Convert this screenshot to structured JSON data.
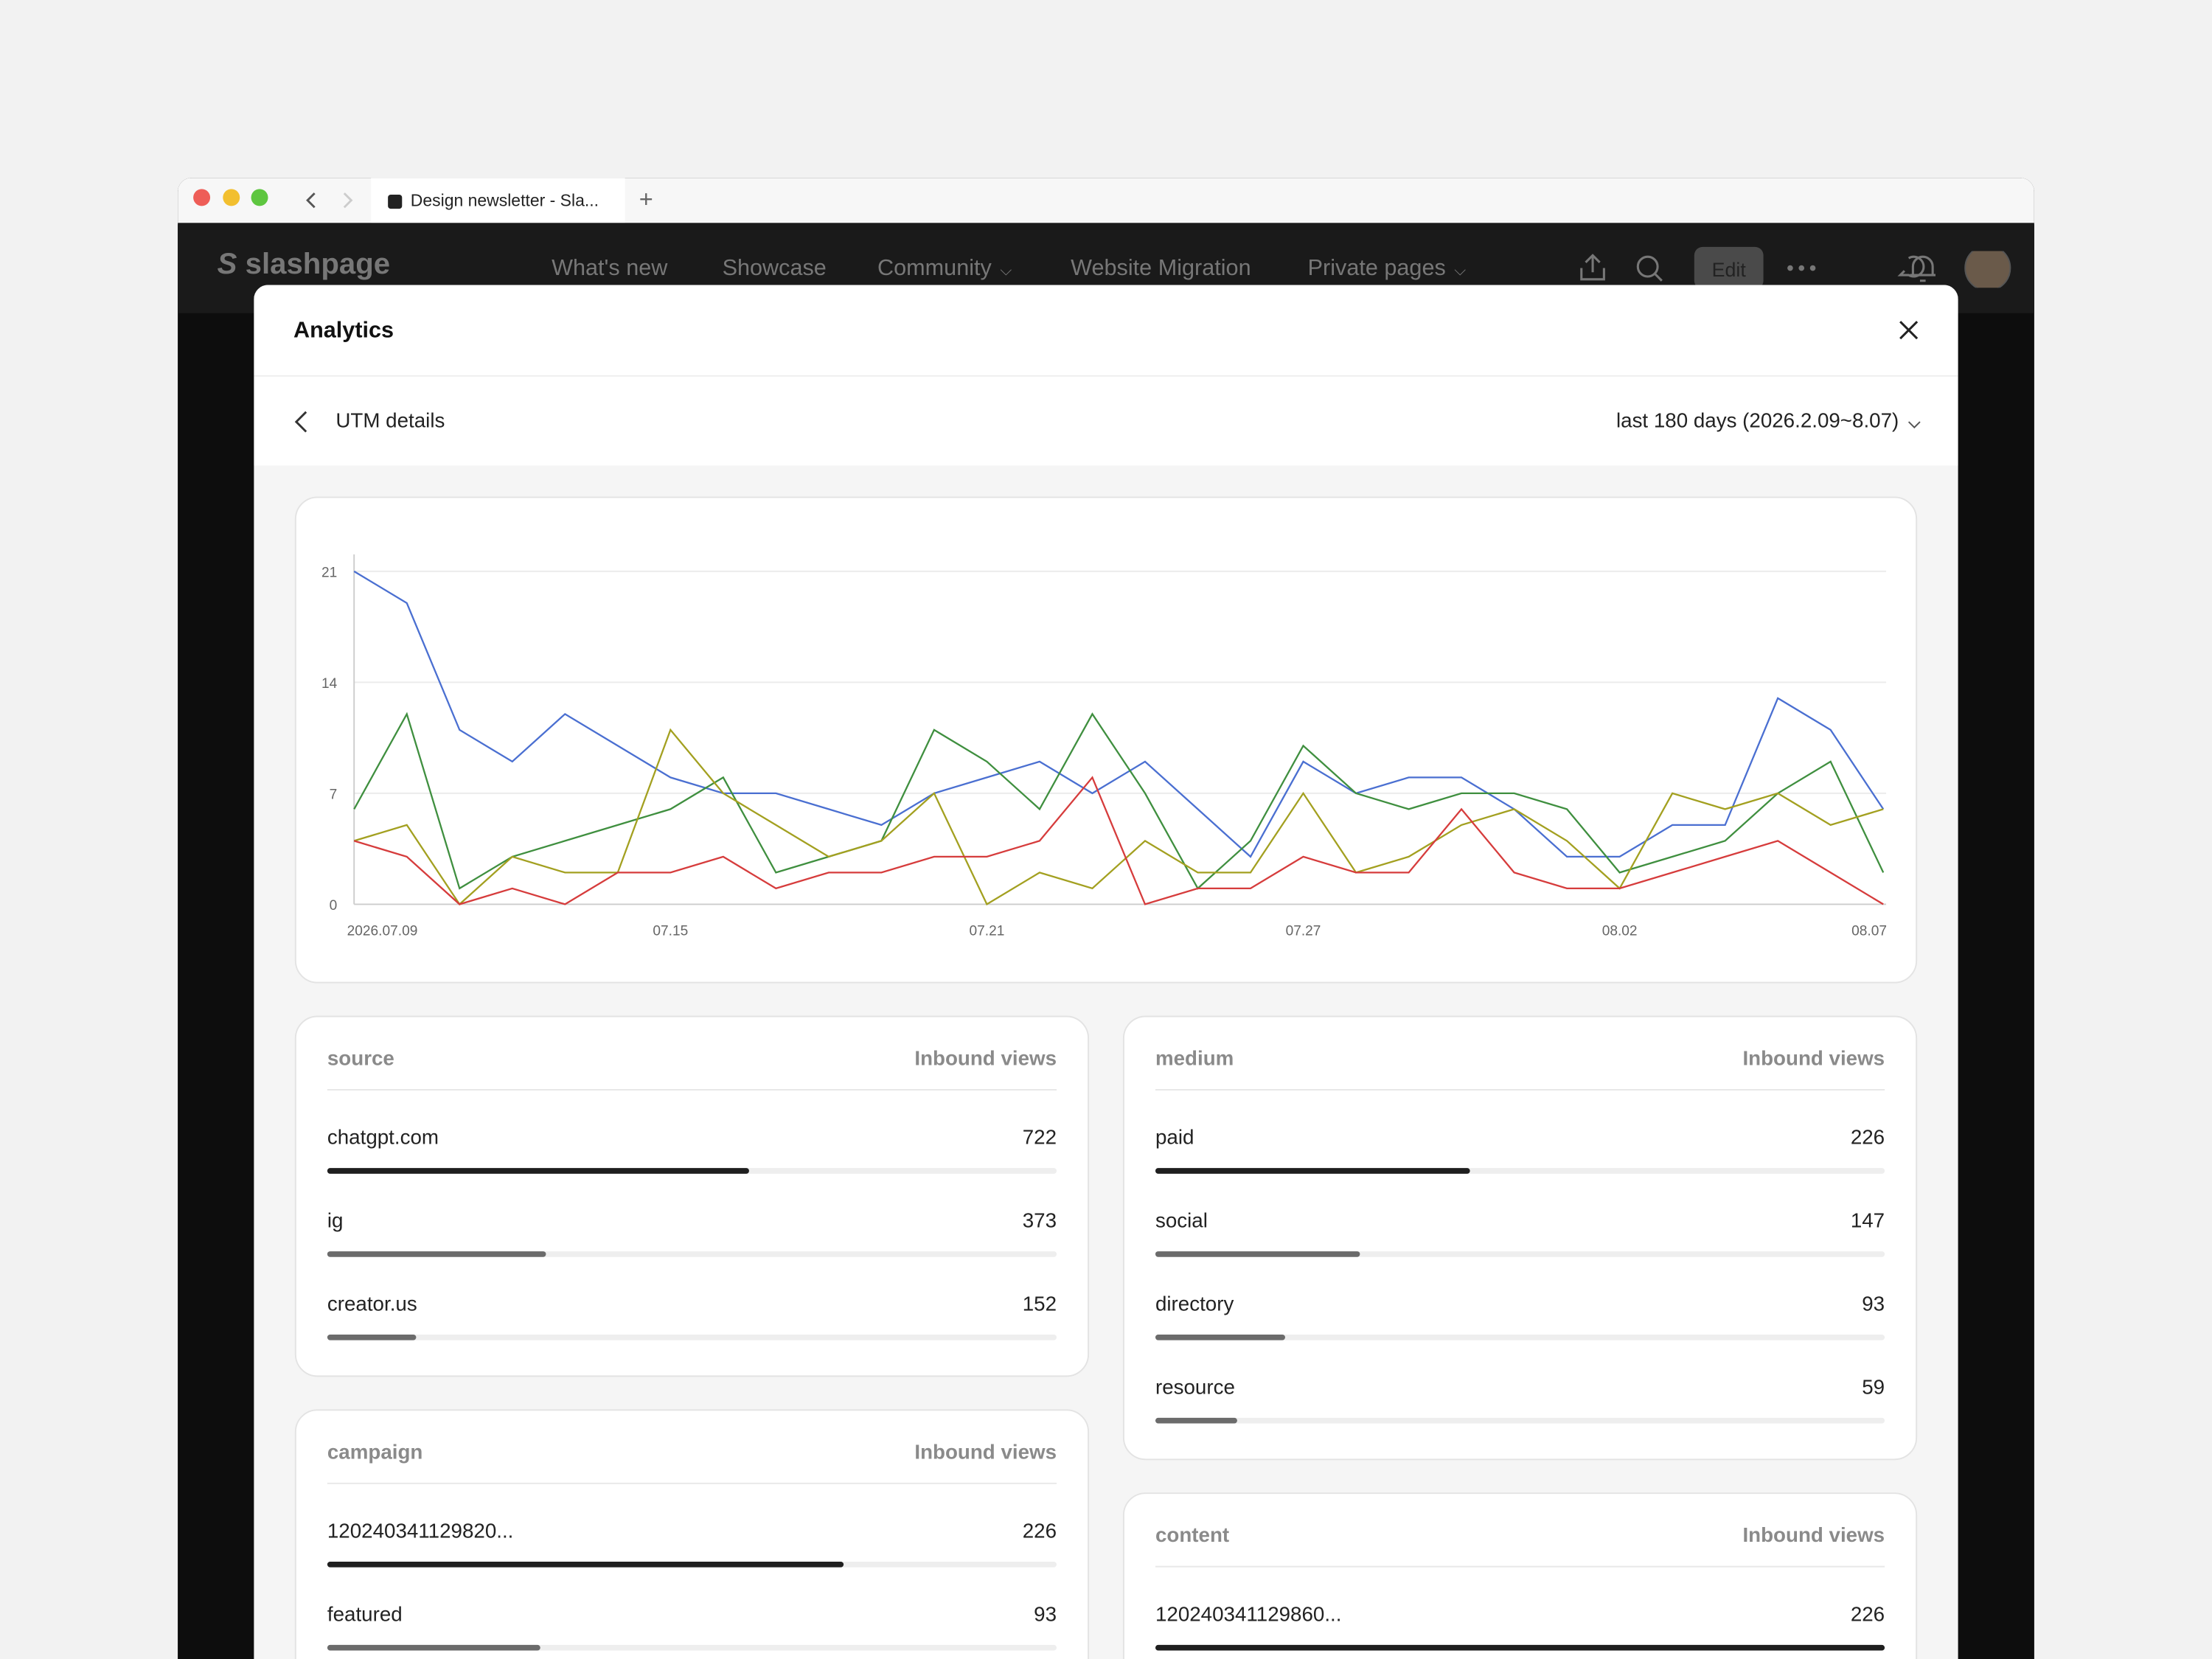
{
  "browser": {
    "tab_title": "Design newsletter - Sla..."
  },
  "app": {
    "logo": "slashpage",
    "nav": [
      "What's new",
      "Showcase",
      "Community",
      "Website Migration",
      "Private pages"
    ],
    "edit": "Edit"
  },
  "modal": {
    "title": "Analytics",
    "subtitle": "UTM details",
    "range": "last 180 days (2026.2.09~8.07)"
  },
  "chart_data": {
    "type": "line",
    "x": [
      "2026.07.09",
      null,
      null,
      null,
      null,
      null,
      "07.15",
      null,
      null,
      null,
      null,
      null,
      "07.21",
      null,
      null,
      null,
      null,
      null,
      "07.27",
      null,
      null,
      null,
      null,
      null,
      "08.02",
      null,
      null,
      null,
      null,
      "08.07"
    ],
    "series": [
      {
        "color": "#4a6fd1",
        "values": [
          21,
          19,
          11,
          9,
          12,
          10,
          8,
          7,
          7,
          6,
          5,
          7,
          8,
          9,
          7,
          9,
          6,
          3,
          9,
          7,
          8,
          8,
          6,
          3,
          3,
          5,
          5,
          13,
          11,
          6
        ]
      },
      {
        "color": "#3f8f3f",
        "values": [
          6,
          12,
          1,
          3,
          4,
          5,
          6,
          8,
          2,
          3,
          4,
          11,
          9,
          6,
          12,
          7,
          1,
          4,
          10,
          7,
          6,
          7,
          7,
          6,
          2,
          3,
          4,
          7,
          9,
          2
        ]
      },
      {
        "color": "#a3a020",
        "values": [
          4,
          5,
          0,
          3,
          2,
          2,
          11,
          7,
          5,
          3,
          4,
          7,
          0,
          2,
          1,
          4,
          2,
          2,
          7,
          2,
          3,
          5,
          6,
          4,
          1,
          7,
          6,
          7,
          5,
          6
        ]
      },
      {
        "color": "#d63c3c",
        "values": [
          4,
          3,
          0,
          1,
          0,
          2,
          2,
          3,
          1,
          2,
          2,
          3,
          3,
          4,
          8,
          0,
          1,
          1,
          3,
          2,
          2,
          6,
          2,
          1,
          1,
          2,
          3,
          4,
          2,
          0
        ]
      }
    ],
    "ylim": [
      0,
      21
    ],
    "yticks": [
      0,
      7,
      14,
      21
    ],
    "grid": true
  },
  "tables": [
    {
      "dimension": "source",
      "metric": "Inbound views",
      "rows": [
        {
          "label": "chatgpt.com",
          "value": 722
        },
        {
          "label": "ig",
          "value": 373
        },
        {
          "label": "creator.us",
          "value": 152
        }
      ]
    },
    {
      "dimension": "medium",
      "metric": "Inbound views",
      "rows": [
        {
          "label": "paid",
          "value": 226
        },
        {
          "label": "social",
          "value": 147
        },
        {
          "label": "directory",
          "value": 93
        },
        {
          "label": "resource",
          "value": 59
        }
      ]
    },
    {
      "dimension": "campaign",
      "metric": "Inbound views",
      "rows": [
        {
          "label": "120240341129820...",
          "value": 226
        },
        {
          "label": "featured",
          "value": 93
        }
      ]
    },
    {
      "dimension": "content",
      "metric": "Inbound views",
      "rows": [
        {
          "label": "120240341129860...",
          "value": 226
        }
      ]
    }
  ]
}
